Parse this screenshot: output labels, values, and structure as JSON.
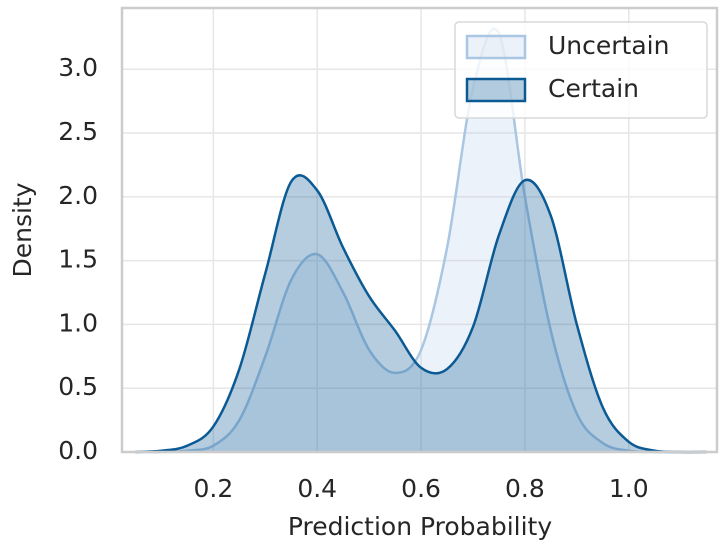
{
  "chart_data": {
    "type": "area",
    "xlabel": "Prediction Probability",
    "ylabel": "Density",
    "x": [
      0.05,
      0.1,
      0.15,
      0.2,
      0.25,
      0.3,
      0.35,
      0.4,
      0.45,
      0.5,
      0.55,
      0.6,
      0.65,
      0.7,
      0.75,
      0.8,
      0.85,
      0.9,
      0.95,
      1.0,
      1.05,
      1.1,
      1.15
    ],
    "series": [
      {
        "name": "Uncertain",
        "color": "#a9c6e2",
        "values": [
          0,
          0,
          0.01,
          0.05,
          0.25,
          0.75,
          1.35,
          1.55,
          1.25,
          0.8,
          0.62,
          0.8,
          1.6,
          2.85,
          3.28,
          2.0,
          0.95,
          0.3,
          0.07,
          0.01,
          0,
          0,
          0
        ]
      },
      {
        "name": "Certain",
        "color": "#0b5a94",
        "values": [
          0,
          0.01,
          0.05,
          0.2,
          0.65,
          1.4,
          2.12,
          2.05,
          1.6,
          1.22,
          0.95,
          0.66,
          0.65,
          0.98,
          1.7,
          2.13,
          1.85,
          1.0,
          0.35,
          0.08,
          0.01,
          0,
          0
        ]
      }
    ],
    "xlim": [
      0.024,
      1.17
    ],
    "ylim": [
      0,
      3.48
    ],
    "xticks": [
      0.2,
      0.4,
      0.6,
      0.8,
      {
        "value": 1.0,
        "label": "1.0"
      }
    ],
    "yticks": [
      {
        "value": 0,
        "label": "0.0"
      },
      0.5,
      {
        "value": 1,
        "label": "1.0"
      },
      1.5,
      {
        "value": 2,
        "label": "2.0"
      },
      2.5,
      {
        "value": 3,
        "label": "3.0"
      }
    ],
    "grid": true,
    "legend": "upper right"
  }
}
